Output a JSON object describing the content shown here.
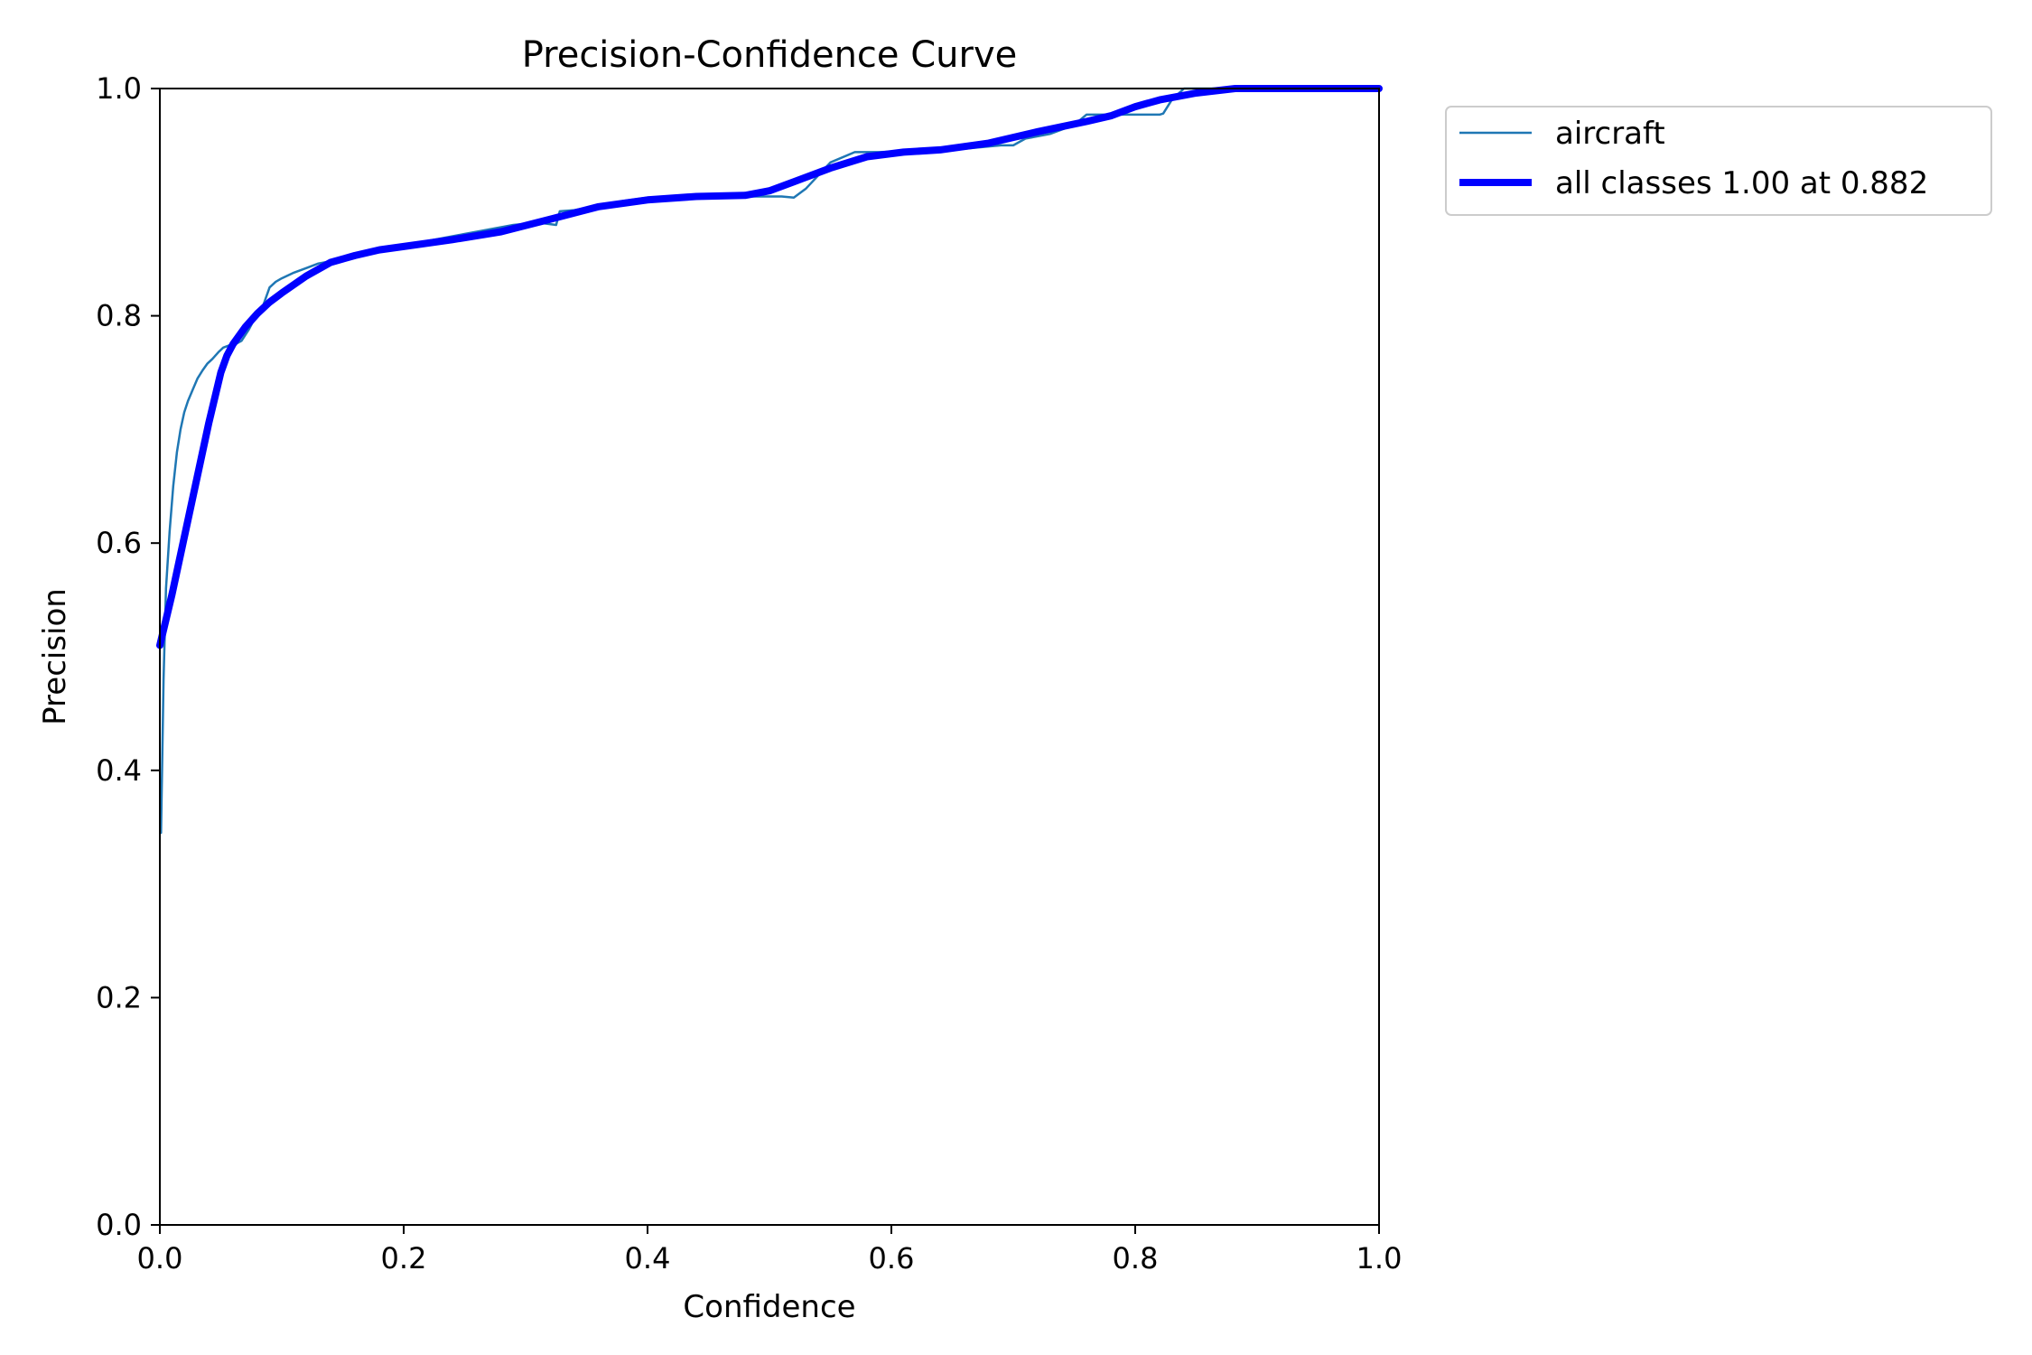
{
  "chart_data": {
    "type": "line",
    "title": "Precision-Confidence Curve",
    "xlabel": "Confidence",
    "ylabel": "Precision",
    "xlim": [
      0,
      1
    ],
    "ylim": [
      0,
      1
    ],
    "xticks": [
      "0.0",
      "0.2",
      "0.4",
      "0.6",
      "0.8",
      "1.0"
    ],
    "yticks": [
      "0.0",
      "0.2",
      "0.4",
      "0.6",
      "0.8",
      "1.0"
    ],
    "grid": false,
    "legend": {
      "placement": "outside-top-right"
    },
    "series": [
      {
        "name": "aircraft",
        "color": "#1f77b4",
        "style": "thin",
        "x": [
          0.001,
          0.003,
          0.005,
          0.008,
          0.011,
          0.014,
          0.017,
          0.02,
          0.023,
          0.027,
          0.031,
          0.035,
          0.039,
          0.043,
          0.048,
          0.052,
          0.057,
          0.062,
          0.067,
          0.073,
          0.079,
          0.085,
          0.09,
          0.095,
          0.1,
          0.11,
          0.12,
          0.13,
          0.14,
          0.15,
          0.17,
          0.19,
          0.21,
          0.23,
          0.25,
          0.27,
          0.29,
          0.31,
          0.325,
          0.328,
          0.34,
          0.36,
          0.38,
          0.4,
          0.42,
          0.44,
          0.46,
          0.48,
          0.5,
          0.51,
          0.52,
          0.53,
          0.55,
          0.57,
          0.59,
          0.61,
          0.63,
          0.65,
          0.67,
          0.69,
          0.7,
          0.71,
          0.73,
          0.75,
          0.76,
          0.78,
          0.8,
          0.82,
          0.823,
          0.83,
          0.84,
          0.86,
          0.88,
          0.9,
          0.95,
          1.0
        ],
        "y": [
          0.345,
          0.48,
          0.56,
          0.61,
          0.65,
          0.68,
          0.7,
          0.715,
          0.725,
          0.735,
          0.745,
          0.752,
          0.758,
          0.762,
          0.768,
          0.772,
          0.774,
          0.775,
          0.778,
          0.788,
          0.8,
          0.81,
          0.825,
          0.83,
          0.833,
          0.838,
          0.842,
          0.846,
          0.848,
          0.85,
          0.856,
          0.86,
          0.864,
          0.868,
          0.872,
          0.876,
          0.88,
          0.882,
          0.88,
          0.892,
          0.893,
          0.897,
          0.901,
          0.904,
          0.905,
          0.906,
          0.906,
          0.905,
          0.905,
          0.905,
          0.904,
          0.912,
          0.935,
          0.944,
          0.944,
          0.945,
          0.946,
          0.946,
          0.948,
          0.95,
          0.95,
          0.956,
          0.96,
          0.968,
          0.977,
          0.977,
          0.977,
          0.977,
          0.978,
          0.99,
          1.0,
          1.0,
          1.0,
          1.0,
          1.0,
          1.0
        ]
      },
      {
        "name": "all classes 1.00 at 0.882",
        "color": "#0000ff",
        "style": "thick",
        "x": [
          0.0,
          0.01,
          0.02,
          0.03,
          0.04,
          0.05,
          0.055,
          0.06,
          0.07,
          0.08,
          0.09,
          0.1,
          0.12,
          0.14,
          0.16,
          0.18,
          0.2,
          0.24,
          0.28,
          0.32,
          0.36,
          0.4,
          0.44,
          0.48,
          0.5,
          0.52,
          0.55,
          0.58,
          0.61,
          0.64,
          0.68,
          0.72,
          0.76,
          0.78,
          0.8,
          0.82,
          0.85,
          0.882,
          0.9,
          0.95,
          1.0
        ],
        "y": [
          0.51,
          0.555,
          0.605,
          0.655,
          0.705,
          0.75,
          0.765,
          0.775,
          0.79,
          0.802,
          0.812,
          0.82,
          0.835,
          0.847,
          0.853,
          0.858,
          0.861,
          0.867,
          0.874,
          0.885,
          0.896,
          0.902,
          0.905,
          0.906,
          0.91,
          0.918,
          0.93,
          0.94,
          0.944,
          0.946,
          0.952,
          0.962,
          0.971,
          0.976,
          0.984,
          0.99,
          0.996,
          1.0,
          1.0,
          1.0,
          1.0
        ]
      }
    ]
  }
}
